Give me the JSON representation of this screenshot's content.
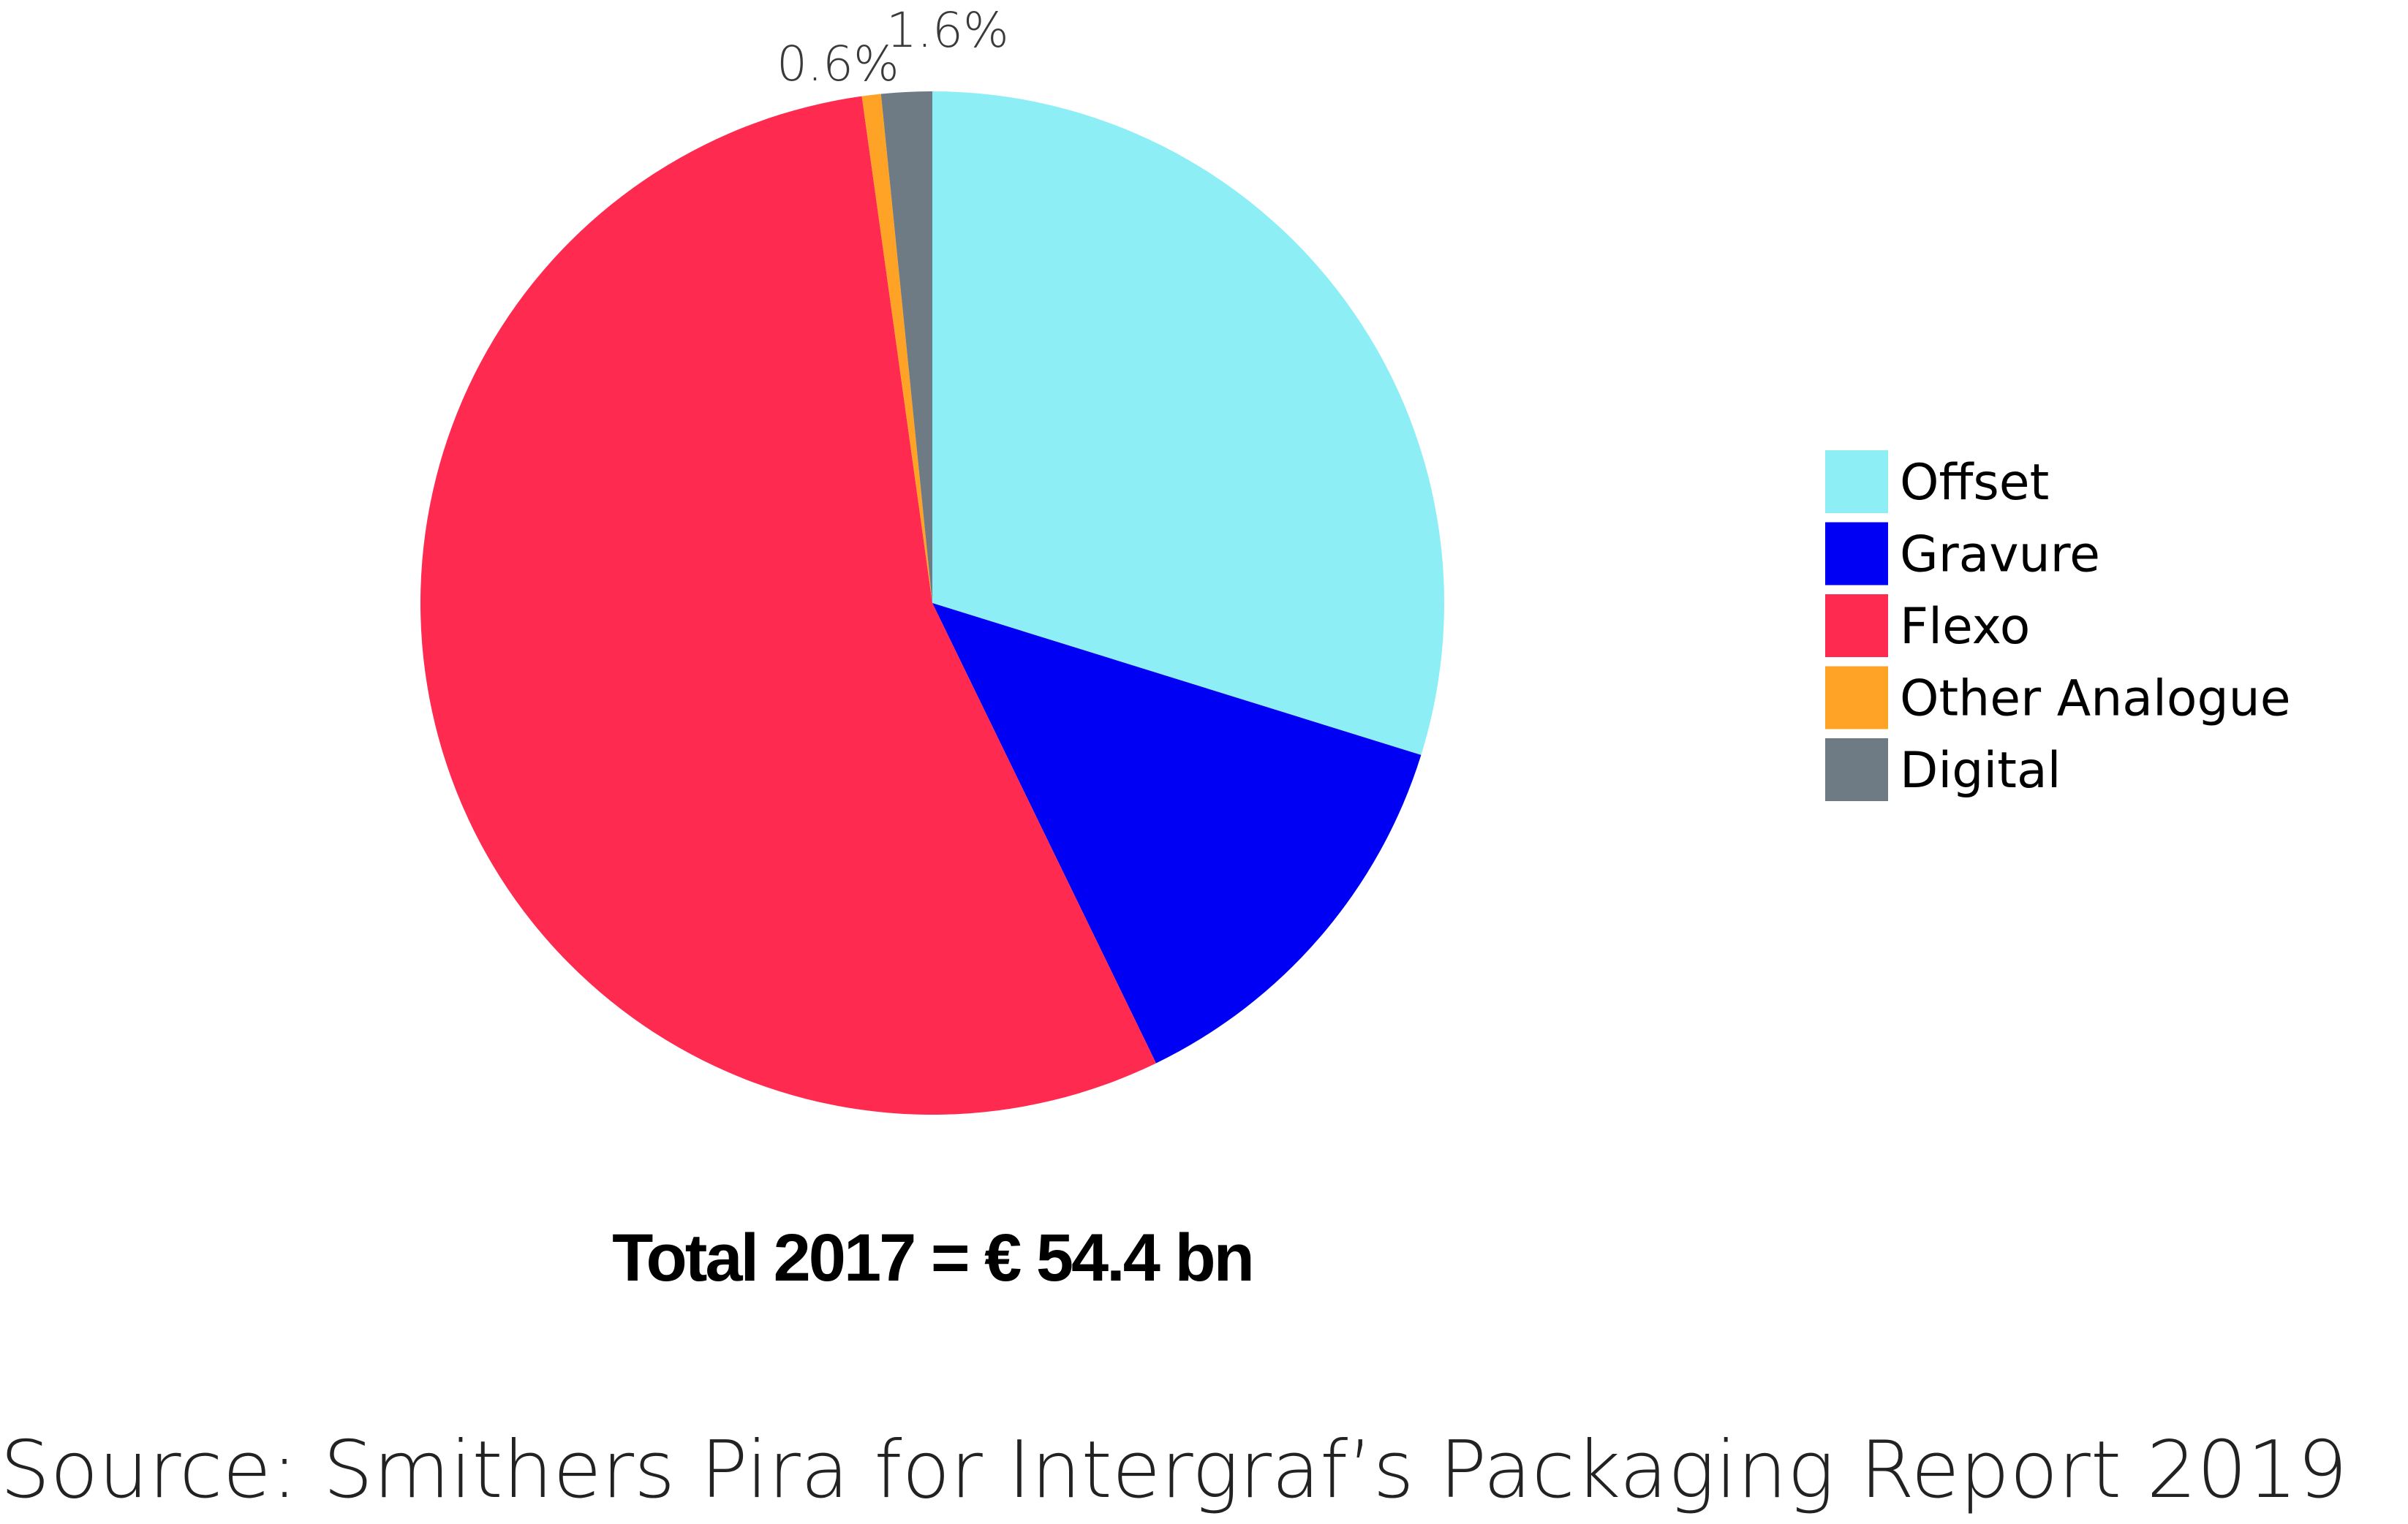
{
  "chart_data": {
    "type": "pie",
    "slices": [
      {
        "name": "Offset",
        "value": 29.8,
        "color": "#8EEEF6"
      },
      {
        "name": "Gravure",
        "value": 13.0,
        "color": "#0000F5"
      },
      {
        "name": "Flexo",
        "value": 55.0,
        "color": "#FF2A4F"
      },
      {
        "name": "Other Analogue",
        "value": 0.6,
        "color": "#FFA326"
      },
      {
        "name": "Digital",
        "value": 1.6,
        "color": "#6E7B85"
      }
    ],
    "data_labels": [
      {
        "series": "Other Analogue",
        "text": "0.6%"
      },
      {
        "series": "Digital",
        "text": "1.6%"
      }
    ],
    "legend_placement": "right",
    "annotation": "Total 2017 = € 54.4 bn",
    "source": "Source: Smithers Pira for Intergraf’s Packaging Report 2019"
  }
}
